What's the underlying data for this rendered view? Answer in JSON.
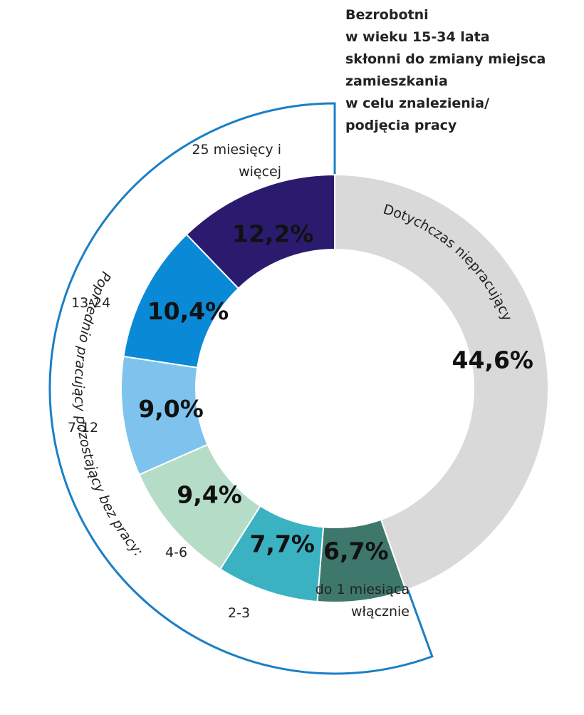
{
  "chart_data": {
    "type": "donut",
    "title": [
      "Bezrobotni",
      "w wieku 15-34 lata",
      "skłonni do zmiany miejsca",
      "zamieszkania",
      "w celu znalezienia/",
      "podjęcia pracy"
    ],
    "categories": [
      "Dotychczas niepracujący",
      "do 1 miesiąca włącznie",
      "2-3",
      "4-6",
      "7-12",
      "13-24",
      "25 miesięcy i więcej"
    ],
    "values": [
      44.6,
      6.7,
      7.7,
      9.4,
      9.0,
      10.4,
      12.2
    ],
    "value_labels": [
      "44,6%",
      "6,7%",
      "7,7%",
      "9,4%",
      "9,0%",
      "10,4%",
      "12,2%"
    ],
    "colors": [
      "#d9d9d9",
      "#3e776b",
      "#3bb2c2",
      "#b5dcc7",
      "#7ec3ee",
      "#0a89d6",
      "#2b1b6f"
    ],
    "group_label": "Poprzednio pracujący pozostający bez pracy:"
  }
}
